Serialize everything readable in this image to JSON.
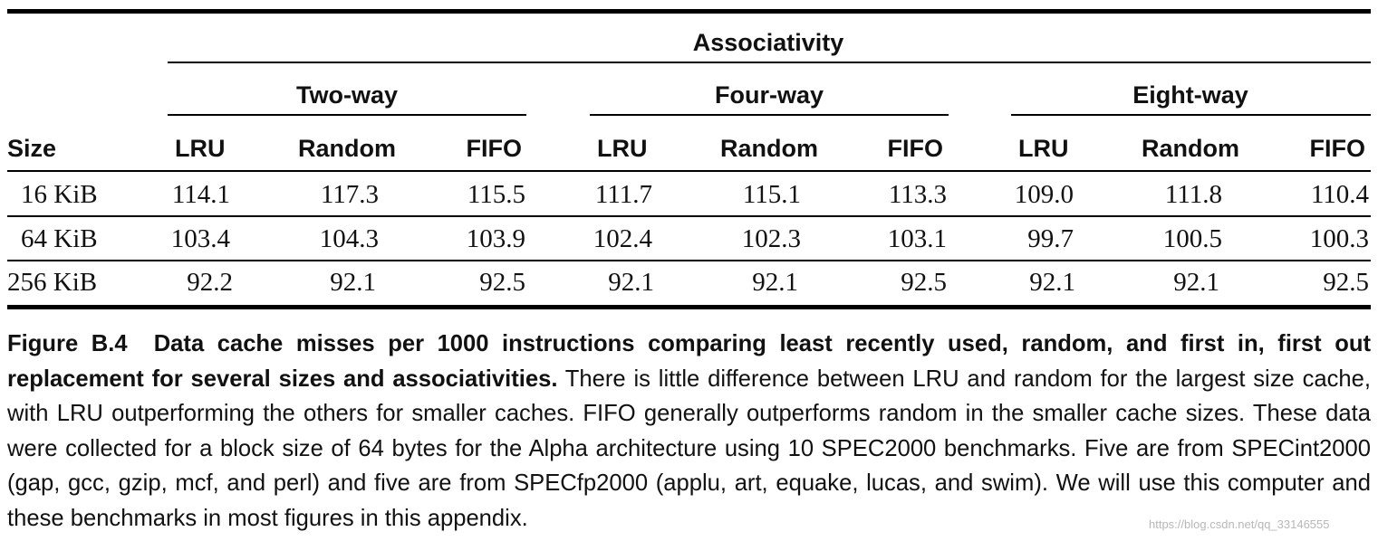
{
  "table": {
    "group_header": "Associativity",
    "size_header": "Size",
    "groups": [
      {
        "label": "Two-way",
        "columns": [
          "LRU",
          "Random",
          "FIFO"
        ]
      },
      {
        "label": "Four-way",
        "columns": [
          "LRU",
          "Random",
          "FIFO"
        ]
      },
      {
        "label": "Eight-way",
        "columns": [
          "LRU",
          "Random",
          "FIFO"
        ]
      }
    ],
    "rows": [
      {
        "size": "16 KiB",
        "values": [
          "114.1",
          "117.3",
          "115.5",
          "111.7",
          "115.1",
          "113.3",
          "109.0",
          "111.8",
          "110.4"
        ]
      },
      {
        "size": "64 KiB",
        "values": [
          "103.4",
          "104.3",
          "103.9",
          "102.4",
          "102.3",
          "103.1",
          "99.7",
          "100.5",
          "100.3"
        ]
      },
      {
        "size": "256 KiB",
        "values": [
          "92.2",
          "92.1",
          "92.5",
          "92.1",
          "92.1",
          "92.5",
          "92.1",
          "92.1",
          "92.5"
        ]
      }
    ]
  },
  "caption": {
    "label": "Figure B.4",
    "title": "Data cache misses per 1000 instructions comparing least recently used, random, and first in, first out replacement for several sizes and associativities.",
    "body": "There is little difference between LRU and random for the largest size cache, with LRU outperforming the others for smaller caches. FIFO generally outperforms random in the smaller cache sizes. These data were collected for a block size of 64 bytes for the Alpha architecture using 10 SPEC2000 benchmarks. Five are from SPECint2000 (gap, gcc, gzip, mcf, and perl) and five are from SPECfp2000 (applu, art, equake, lucas, and swim). We will use this computer and these benchmarks in most figures in this appendix."
  },
  "watermark": "https://blog.csdn.net/qq_33146555"
}
